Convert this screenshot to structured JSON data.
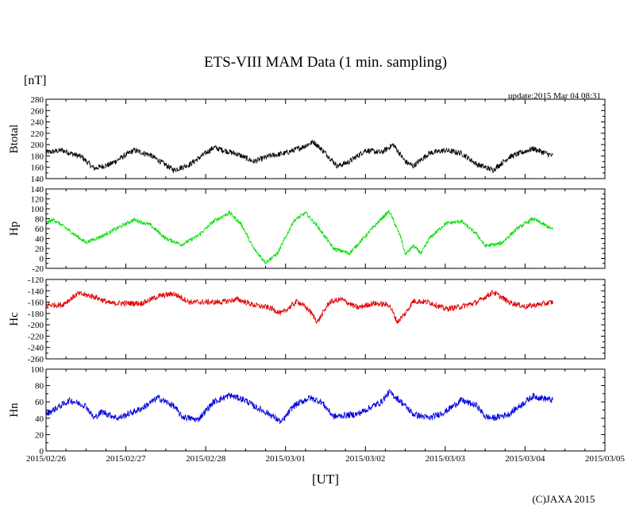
{
  "chart_data": {
    "type": "line",
    "title": "ETS-VIII MAM Data (1 min. sampling)",
    "unit_label": "[nT]",
    "xlabel": "[UT]",
    "update": "update:2015 Mar 04 08:31",
    "copyright": "(C)JAXA 2015",
    "x_ticks": [
      "2015/02/26",
      "2015/02/27",
      "2015/02/28",
      "2015/03/01",
      "2015/03/02",
      "2015/03/03",
      "2015/03/04",
      "2015/03/05"
    ],
    "x_range_days": [
      0,
      7
    ],
    "data_end_day": 6.35,
    "panels": [
      {
        "name": "Btotal",
        "ylabel": "Btotal",
        "color": "#000000",
        "ylim": [
          140,
          280
        ],
        "yticks": [
          "280",
          "260",
          "240",
          "220",
          "200",
          "180",
          "160",
          "140"
        ],
        "series": [
          [
            0,
            186
          ],
          [
            0.2,
            190
          ],
          [
            0.45,
            178
          ],
          [
            0.6,
            158
          ],
          [
            0.8,
            165
          ],
          [
            1.1,
            190
          ],
          [
            1.3,
            182
          ],
          [
            1.6,
            155
          ],
          [
            1.8,
            165
          ],
          [
            2.1,
            195
          ],
          [
            2.4,
            183
          ],
          [
            2.6,
            170
          ],
          [
            2.8,
            180
          ],
          [
            3.0,
            185
          ],
          [
            3.2,
            195
          ],
          [
            3.35,
            205
          ],
          [
            3.5,
            185
          ],
          [
            3.65,
            162
          ],
          [
            3.8,
            170
          ],
          [
            4.0,
            190
          ],
          [
            4.2,
            186
          ],
          [
            4.35,
            200
          ],
          [
            4.5,
            170
          ],
          [
            4.6,
            162
          ],
          [
            4.8,
            185
          ],
          [
            5.0,
            190
          ],
          [
            5.2,
            185
          ],
          [
            5.4,
            165
          ],
          [
            5.6,
            155
          ],
          [
            5.8,
            178
          ],
          [
            6.1,
            193
          ],
          [
            6.35,
            180
          ]
        ],
        "noise": 5
      },
      {
        "name": "Hp",
        "ylabel": "Hp",
        "color": "#00e000",
        "ylim": [
          -20,
          140
        ],
        "yticks": [
          "140",
          "120",
          "100",
          "80",
          "60",
          "40",
          "20",
          "0",
          "-20"
        ],
        "series": [
          [
            0,
            72
          ],
          [
            0.1,
            78
          ],
          [
            0.3,
            55
          ],
          [
            0.5,
            32
          ],
          [
            0.7,
            45
          ],
          [
            1.1,
            78
          ],
          [
            1.3,
            68
          ],
          [
            1.5,
            40
          ],
          [
            1.7,
            28
          ],
          [
            1.9,
            45
          ],
          [
            2.1,
            75
          ],
          [
            2.3,
            92
          ],
          [
            2.45,
            68
          ],
          [
            2.6,
            20
          ],
          [
            2.75,
            -8
          ],
          [
            2.9,
            10
          ],
          [
            3.1,
            75
          ],
          [
            3.25,
            92
          ],
          [
            3.4,
            65
          ],
          [
            3.6,
            20
          ],
          [
            3.8,
            10
          ],
          [
            4.0,
            45
          ],
          [
            4.2,
            80
          ],
          [
            4.3,
            95
          ],
          [
            4.45,
            40
          ],
          [
            4.5,
            8
          ],
          [
            4.6,
            25
          ],
          [
            4.7,
            10
          ],
          [
            4.8,
            40
          ],
          [
            5.0,
            70
          ],
          [
            5.2,
            75
          ],
          [
            5.4,
            48
          ],
          [
            5.5,
            25
          ],
          [
            5.7,
            30
          ],
          [
            5.9,
            60
          ],
          [
            6.1,
            80
          ],
          [
            6.35,
            58
          ]
        ],
        "noise": 4
      },
      {
        "name": "Hc",
        "ylabel": "Hc",
        "color": "#e00000",
        "ylim": [
          -260,
          -120
        ],
        "yticks": [
          "-120",
          "-140",
          "-160",
          "-180",
          "-200",
          "-220",
          "-240",
          "-260"
        ],
        "series": [
          [
            0,
            -165
          ],
          [
            0.2,
            -165
          ],
          [
            0.4,
            -145
          ],
          [
            0.6,
            -150
          ],
          [
            0.8,
            -162
          ],
          [
            1.2,
            -162
          ],
          [
            1.4,
            -150
          ],
          [
            1.6,
            -145
          ],
          [
            1.8,
            -160
          ],
          [
            2.2,
            -160
          ],
          [
            2.4,
            -155
          ],
          [
            2.6,
            -165
          ],
          [
            2.8,
            -170
          ],
          [
            2.95,
            -180
          ],
          [
            3.15,
            -158
          ],
          [
            3.3,
            -175
          ],
          [
            3.4,
            -195
          ],
          [
            3.55,
            -160
          ],
          [
            3.7,
            -155
          ],
          [
            3.9,
            -170
          ],
          [
            4.1,
            -162
          ],
          [
            4.3,
            -165
          ],
          [
            4.4,
            -195
          ],
          [
            4.5,
            -180
          ],
          [
            4.6,
            -158
          ],
          [
            4.8,
            -160
          ],
          [
            5.0,
            -172
          ],
          [
            5.2,
            -168
          ],
          [
            5.4,
            -160
          ],
          [
            5.6,
            -142
          ],
          [
            5.8,
            -160
          ],
          [
            6.0,
            -168
          ],
          [
            6.35,
            -160
          ]
        ],
        "noise": 5
      },
      {
        "name": "Hn",
        "ylabel": "Hn",
        "color": "#0000dd",
        "ylim": [
          0,
          100
        ],
        "yticks": [
          "100",
          "80",
          "60",
          "40",
          "20",
          "0"
        ],
        "series": [
          [
            0,
            45
          ],
          [
            0.3,
            62
          ],
          [
            0.5,
            55
          ],
          [
            0.6,
            40
          ],
          [
            0.7,
            48
          ],
          [
            0.9,
            40
          ],
          [
            1.2,
            52
          ],
          [
            1.4,
            65
          ],
          [
            1.6,
            55
          ],
          [
            1.7,
            42
          ],
          [
            1.9,
            38
          ],
          [
            2.1,
            60
          ],
          [
            2.3,
            68
          ],
          [
            2.5,
            62
          ],
          [
            2.6,
            55
          ],
          [
            2.8,
            45
          ],
          [
            2.95,
            35
          ],
          [
            3.1,
            55
          ],
          [
            3.3,
            65
          ],
          [
            3.45,
            60
          ],
          [
            3.6,
            42
          ],
          [
            3.9,
            45
          ],
          [
            4.2,
            60
          ],
          [
            4.3,
            72
          ],
          [
            4.45,
            60
          ],
          [
            4.6,
            45
          ],
          [
            4.8,
            40
          ],
          [
            5.0,
            48
          ],
          [
            5.2,
            62
          ],
          [
            5.4,
            55
          ],
          [
            5.5,
            42
          ],
          [
            5.6,
            40
          ],
          [
            5.8,
            45
          ],
          [
            6.0,
            60
          ],
          [
            6.1,
            67
          ],
          [
            6.35,
            62
          ]
        ],
        "noise": 4
      }
    ]
  }
}
